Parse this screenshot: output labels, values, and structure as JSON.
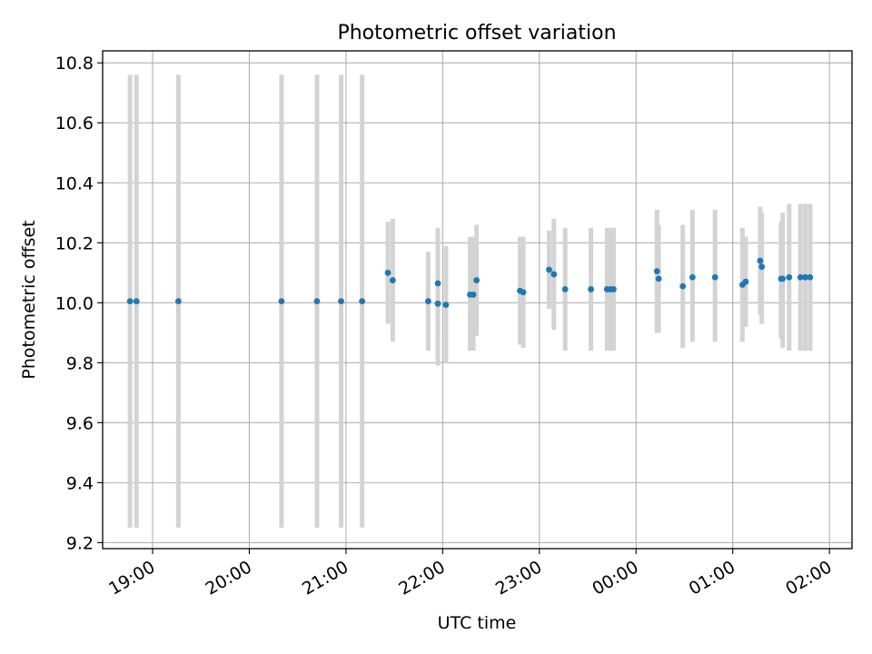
{
  "chart_data": {
    "type": "scatter",
    "title": "Photometric offset variation",
    "xlabel": "UTC time",
    "ylabel": "Photometric offset",
    "x_axis_type": "time",
    "x_range": [
      "18:29",
      "02:14"
    ],
    "ylim": [
      9.18,
      10.84
    ],
    "x_ticks": [
      {
        "t": "19:00",
        "label": "19:00"
      },
      {
        "t": "20:00",
        "label": "20:00"
      },
      {
        "t": "21:00",
        "label": "21:00"
      },
      {
        "t": "22:00",
        "label": "22:00"
      },
      {
        "t": "23:00",
        "label": "23:00"
      },
      {
        "t": "00:00",
        "label": "00:00"
      },
      {
        "t": "01:00",
        "label": "01:00"
      },
      {
        "t": "02:00",
        "label": "02:00"
      }
    ],
    "y_ticks": [
      {
        "v": 9.2,
        "label": "9.2"
      },
      {
        "v": 9.4,
        "label": "9.4"
      },
      {
        "v": 9.6,
        "label": "9.6"
      },
      {
        "v": 9.8,
        "label": "9.8"
      },
      {
        "v": 10.0,
        "label": "10.0"
      },
      {
        "v": 10.2,
        "label": "10.2"
      },
      {
        "v": 10.4,
        "label": "10.4"
      },
      {
        "v": 10.6,
        "label": "10.6"
      },
      {
        "v": 10.8,
        "label": "10.8"
      }
    ],
    "grid": true,
    "colors": {
      "points": "#1f77b4",
      "error_bars": "#d3d3d3",
      "grid": "#b0b0b0"
    },
    "points": [
      {
        "t": "18:46",
        "y": 10.005,
        "lo": 9.25,
        "hi": 10.76
      },
      {
        "t": "18:50",
        "y": 10.005,
        "lo": 9.25,
        "hi": 10.76
      },
      {
        "t": "19:16",
        "y": 10.005,
        "lo": 9.25,
        "hi": 10.76
      },
      {
        "t": "20:20",
        "y": 10.005,
        "lo": 9.25,
        "hi": 10.76
      },
      {
        "t": "20:42",
        "y": 10.005,
        "lo": 9.25,
        "hi": 10.76
      },
      {
        "t": "20:57",
        "y": 10.005,
        "lo": 9.25,
        "hi": 10.76
      },
      {
        "t": "21:10",
        "y": 10.005,
        "lo": 9.25,
        "hi": 10.76
      },
      {
        "t": "21:26",
        "y": 10.1,
        "lo": 9.93,
        "hi": 10.27
      },
      {
        "t": "21:29",
        "y": 10.075,
        "lo": 9.87,
        "hi": 10.28
      },
      {
        "t": "21:51",
        "y": 10.005,
        "lo": 9.84,
        "hi": 10.17
      },
      {
        "t": "21:57",
        "y": 10.065,
        "lo": 9.88,
        "hi": 10.25
      },
      {
        "t": "21:57",
        "y": 9.997,
        "lo": 9.79,
        "hi": 10.2
      },
      {
        "t": "22:02",
        "y": 9.993,
        "lo": 9.8,
        "hi": 10.19
      },
      {
        "t": "22:17",
        "y": 10.027,
        "lo": 9.84,
        "hi": 10.22
      },
      {
        "t": "22:19",
        "y": 10.027,
        "lo": 9.84,
        "hi": 10.22
      },
      {
        "t": "22:21",
        "y": 10.075,
        "lo": 9.89,
        "hi": 10.26
      },
      {
        "t": "22:48",
        "y": 10.04,
        "lo": 9.86,
        "hi": 10.22
      },
      {
        "t": "22:50",
        "y": 10.035,
        "lo": 9.85,
        "hi": 10.22
      },
      {
        "t": "23:06",
        "y": 10.11,
        "lo": 9.98,
        "hi": 10.24
      },
      {
        "t": "23:09",
        "y": 10.095,
        "lo": 9.91,
        "hi": 10.28
      },
      {
        "t": "23:16",
        "y": 10.045,
        "lo": 9.84,
        "hi": 10.25
      },
      {
        "t": "23:32",
        "y": 10.045,
        "lo": 9.84,
        "hi": 10.25
      },
      {
        "t": "23:42",
        "y": 10.045,
        "lo": 9.84,
        "hi": 10.25
      },
      {
        "t": "23:44",
        "y": 10.045,
        "lo": 9.84,
        "hi": 10.25
      },
      {
        "t": "23:46",
        "y": 10.045,
        "lo": 9.84,
        "hi": 10.25
      },
      {
        "t": "00:13",
        "y": 10.105,
        "lo": 9.9,
        "hi": 10.31
      },
      {
        "t": "00:14",
        "y": 10.08,
        "lo": 9.9,
        "hi": 10.26
      },
      {
        "t": "00:29",
        "y": 10.055,
        "lo": 9.85,
        "hi": 10.26
      },
      {
        "t": "00:35",
        "y": 10.085,
        "lo": 9.87,
        "hi": 10.31
      },
      {
        "t": "00:49",
        "y": 10.085,
        "lo": 9.87,
        "hi": 10.31
      },
      {
        "t": "01:06",
        "y": 10.06,
        "lo": 9.87,
        "hi": 10.25
      },
      {
        "t": "01:08",
        "y": 10.07,
        "lo": 9.92,
        "hi": 10.22
      },
      {
        "t": "01:17",
        "y": 10.14,
        "lo": 9.96,
        "hi": 10.32
      },
      {
        "t": "01:18",
        "y": 10.12,
        "lo": 9.93,
        "hi": 10.3
      },
      {
        "t": "01:30",
        "y": 10.08,
        "lo": 9.88,
        "hi": 10.27
      },
      {
        "t": "01:31",
        "y": 10.08,
        "lo": 9.85,
        "hi": 10.3
      },
      {
        "t": "01:35",
        "y": 10.085,
        "lo": 9.84,
        "hi": 10.33
      },
      {
        "t": "01:42",
        "y": 10.085,
        "lo": 9.84,
        "hi": 10.33
      },
      {
        "t": "01:45",
        "y": 10.085,
        "lo": 9.84,
        "hi": 10.33
      },
      {
        "t": "01:48",
        "y": 10.085,
        "lo": 9.84,
        "hi": 10.33
      }
    ]
  }
}
